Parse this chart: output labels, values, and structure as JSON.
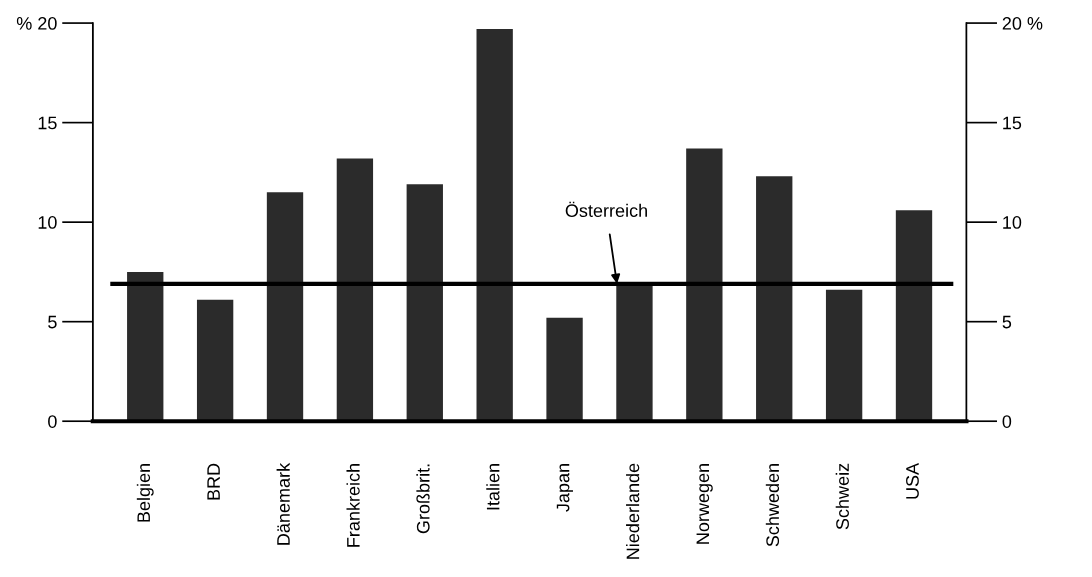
{
  "chart_data": {
    "type": "bar",
    "categories": [
      "Belgien",
      "BRD",
      "Dänemark",
      "Frankreich",
      "Großbrit.",
      "Italien",
      "Japan",
      "Niederlande",
      "Norwegen",
      "Schweden",
      "Schweiz",
      "USA"
    ],
    "values": [
      7.5,
      6.1,
      11.5,
      13.2,
      11.9,
      19.7,
      5.2,
      6.9,
      13.7,
      12.3,
      6.6,
      10.6
    ],
    "color": "#2b2b2b",
    "ylim": [
      0,
      20
    ],
    "yticks": [
      0,
      5,
      10,
      15,
      {
        "value": 20,
        "label": "% 20"
      }
    ],
    "y2lim": [
      0,
      20
    ],
    "y2ticks": [
      0,
      5,
      10,
      15,
      {
        "value": 20,
        "label": "20 %"
      }
    ],
    "ref_lines": [
      {
        "axis": "y",
        "value": 6.9,
        "label": "Österreich",
        "color": "#000000",
        "line_style": "solid"
      }
    ],
    "grid": false,
    "legend": false
  }
}
